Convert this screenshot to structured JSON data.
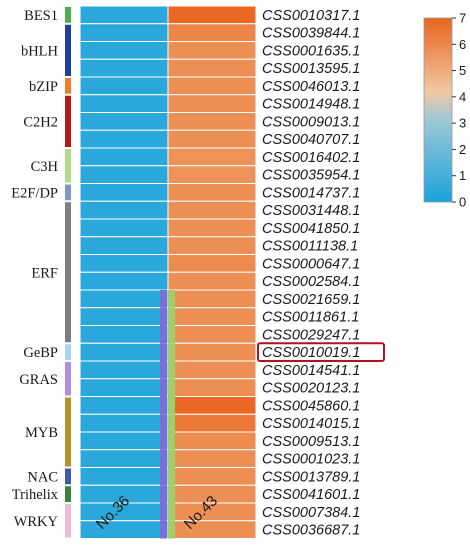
{
  "chart_data": {
    "type": "heatmap",
    "columns": [
      "No.36",
      "No.43"
    ],
    "rows": [
      {
        "gene": "CSS0010317.1",
        "family": "BES1",
        "values": [
          0.4,
          6.9
        ]
      },
      {
        "gene": "CSS0039844.1",
        "family": "bHLH",
        "values": [
          0.4,
          6.2
        ]
      },
      {
        "gene": "CSS0001635.1",
        "family": "bHLH",
        "values": [
          0.4,
          6.0
        ]
      },
      {
        "gene": "CSS0013595.1",
        "family": "bHLH",
        "values": [
          0.4,
          6.0
        ]
      },
      {
        "gene": "CSS0046013.1",
        "family": "bZIP",
        "values": [
          0.4,
          6.0
        ]
      },
      {
        "gene": "CSS0014948.1",
        "family": "C2H2",
        "values": [
          0.4,
          6.0
        ]
      },
      {
        "gene": "CSS0009013.1",
        "family": "C2H2",
        "values": [
          0.4,
          6.0
        ]
      },
      {
        "gene": "CSS0040707.1",
        "family": "C2H2",
        "values": [
          0.4,
          6.0
        ]
      },
      {
        "gene": "CSS0016402.1",
        "family": "C3H",
        "values": [
          0.4,
          5.9
        ]
      },
      {
        "gene": "CSS0035954.1",
        "family": "C3H",
        "values": [
          0.4,
          5.9
        ]
      },
      {
        "gene": "CSS0014737.1",
        "family": "E2F/DP",
        "values": [
          0.4,
          6.0
        ]
      },
      {
        "gene": "CSS0031448.1",
        "family": "ERF",
        "values": [
          0.4,
          6.0
        ]
      },
      {
        "gene": "CSS0041850.1",
        "family": "ERF",
        "values": [
          0.4,
          6.0
        ]
      },
      {
        "gene": "CSS0011138.1",
        "family": "ERF",
        "values": [
          0.4,
          6.0
        ]
      },
      {
        "gene": "CSS0000647.1",
        "family": "ERF",
        "values": [
          0.4,
          6.1
        ]
      },
      {
        "gene": "CSS0002584.1",
        "family": "ERF",
        "values": [
          0.4,
          6.0
        ]
      },
      {
        "gene": "CSS0021659.1",
        "family": "ERF",
        "values": [
          0.4,
          6.0
        ]
      },
      {
        "gene": "CSS0011861.1",
        "family": "ERF",
        "values": [
          0.4,
          6.0
        ]
      },
      {
        "gene": "CSS0029247.1",
        "family": "ERF",
        "values": [
          0.4,
          6.0
        ]
      },
      {
        "gene": "CSS0010019.1",
        "family": "GeBP",
        "values": [
          0.4,
          6.0
        ],
        "highlighted": true
      },
      {
        "gene": "CSS0014541.1",
        "family": "GRAS",
        "values": [
          0.4,
          6.0
        ]
      },
      {
        "gene": "CSS0020123.1",
        "family": "GRAS",
        "values": [
          0.4,
          6.0
        ]
      },
      {
        "gene": "CSS0045860.1",
        "family": "MYB",
        "values": [
          0.4,
          6.9
        ]
      },
      {
        "gene": "CSS0014015.1",
        "family": "MYB",
        "values": [
          0.4,
          6.5
        ]
      },
      {
        "gene": "CSS0009513.1",
        "family": "MYB",
        "values": [
          0.4,
          6.1
        ]
      },
      {
        "gene": "CSS0001023.1",
        "family": "MYB",
        "values": [
          0.4,
          6.0
        ]
      },
      {
        "gene": "CSS0013789.1",
        "family": "NAC",
        "values": [
          0.4,
          6.0
        ]
      },
      {
        "gene": "CSS0041601.1",
        "family": "Trihelix",
        "values": [
          0.4,
          6.0
        ]
      },
      {
        "gene": "CSS0007384.1",
        "family": "WRKY",
        "values": [
          0.4,
          6.0
        ]
      },
      {
        "gene": "CSS0036687.1",
        "family": "WRKY",
        "values": [
          0.4,
          6.0
        ]
      }
    ],
    "families": [
      {
        "name": "BES1",
        "start": 0,
        "end": 0,
        "color": "#4cae4c"
      },
      {
        "name": "bHLH",
        "start": 1,
        "end": 3,
        "color": "#1f3f9a"
      },
      {
        "name": "bZIP",
        "start": 4,
        "end": 4,
        "color": "#ef7d2a"
      },
      {
        "name": "C2H2",
        "start": 5,
        "end": 7,
        "color": "#b3161c"
      },
      {
        "name": "C3H",
        "start": 8,
        "end": 9,
        "color": "#b2dc8b"
      },
      {
        "name": "E2F/DP",
        "start": 10,
        "end": 10,
        "color": "#7d98c9"
      },
      {
        "name": "ERF",
        "start": 11,
        "end": 18,
        "color": "#7f7f7f"
      },
      {
        "name": "GeBP",
        "start": 19,
        "end": 19,
        "color": "#a9d4ef"
      },
      {
        "name": "GRAS",
        "start": 20,
        "end": 21,
        "color": "#b38ee0"
      },
      {
        "name": "MYB",
        "start": 22,
        "end": 25,
        "color": "#b8902f"
      },
      {
        "name": "NAC",
        "start": 26,
        "end": 26,
        "color": "#3d5ba6"
      },
      {
        "name": "Trihelix",
        "start": 27,
        "end": 27,
        "color": "#3f7f3f"
      },
      {
        "name": "WRKY",
        "start": 28,
        "end": 29,
        "color": "#f2b8d6"
      }
    ],
    "colorbar": {
      "min": 0,
      "max": 7,
      "ticks": [
        "0",
        "1",
        "2",
        "3",
        "4",
        "5",
        "6",
        "7"
      ],
      "low_color": "#1aa3dc",
      "high_color": "#e8641e"
    },
    "highlight_color": "#b0141c"
  }
}
